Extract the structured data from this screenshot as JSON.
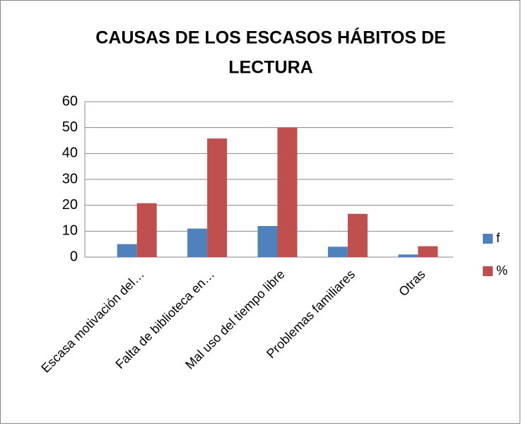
{
  "chart_data": {
    "type": "bar",
    "title": "CAUSAS DE LOS ESCASOS HÁBITOS DE LECTURA",
    "categories": [
      "Escasa motivación del…",
      "Falta de biblioteca en…",
      "Mal uso del tiempo libre",
      "Problemas familiares",
      "Otras"
    ],
    "series": [
      {
        "name": "f",
        "color": "#4f81bd",
        "values": [
          5,
          11,
          12,
          4,
          1
        ]
      },
      {
        "name": "%",
        "color": "#c0504d",
        "values": [
          20.8,
          45.8,
          50,
          16.7,
          4.2
        ]
      }
    ],
    "ylim": [
      0,
      60
    ],
    "yticks": [
      0,
      10,
      20,
      30,
      40,
      50,
      60
    ],
    "grid": true,
    "legend": "right"
  }
}
